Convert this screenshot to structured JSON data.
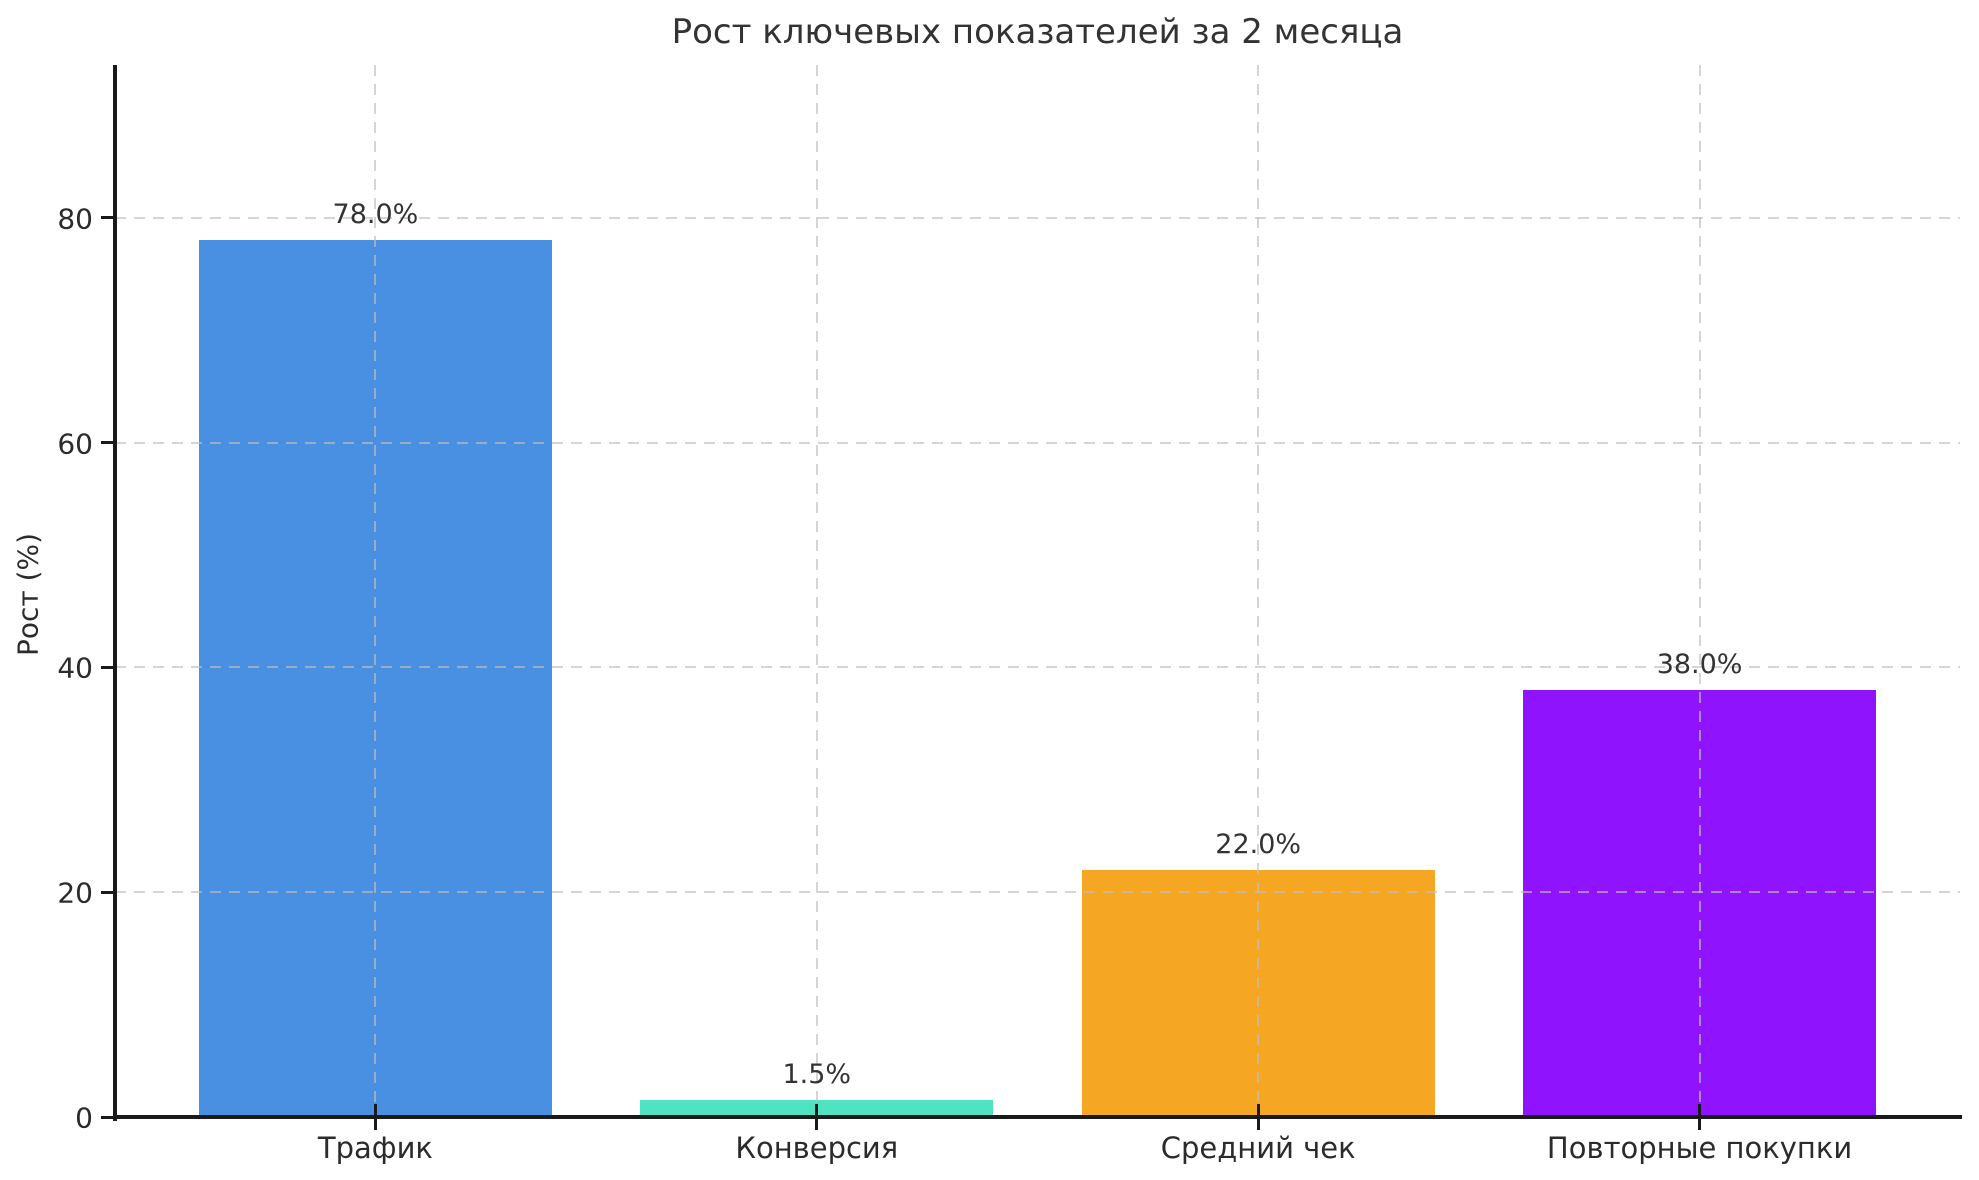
{
  "title": "Рост ключевых показателей за 2 месяца",
  "y_axis_label": "Рост (%)",
  "chart_data": {
    "type": "bar",
    "title": "Рост ключевых показателей за 2 месяца",
    "xlabel": "",
    "ylabel": "Рост (%)",
    "categories": [
      "Трафик",
      "Конверсия",
      "Средний чек",
      "Повторные покупки"
    ],
    "values": [
      78.0,
      1.5,
      22.0,
      38.0
    ],
    "value_labels": [
      "78.0%",
      "1.5%",
      "22.0%",
      "38.0%"
    ],
    "bar_colors": [
      "#4a90e2",
      "#50e3c2",
      "#f5a623",
      "#9013fe"
    ],
    "yticks": [
      0,
      20,
      40,
      60,
      80
    ],
    "ylim": [
      0,
      93.6
    ],
    "bar_width_fraction": 0.8,
    "x_margin_units": 0.59,
    "grid": "dashed gray, horizontal and vertical at bar centers, drawn over bars",
    "legend": "none",
    "spines": "left and bottom only, black",
    "background": "#ffffff",
    "grid_color": "#bebebe",
    "axis_color": "#1a1a1a",
    "text_color": "#2b2b2b"
  }
}
